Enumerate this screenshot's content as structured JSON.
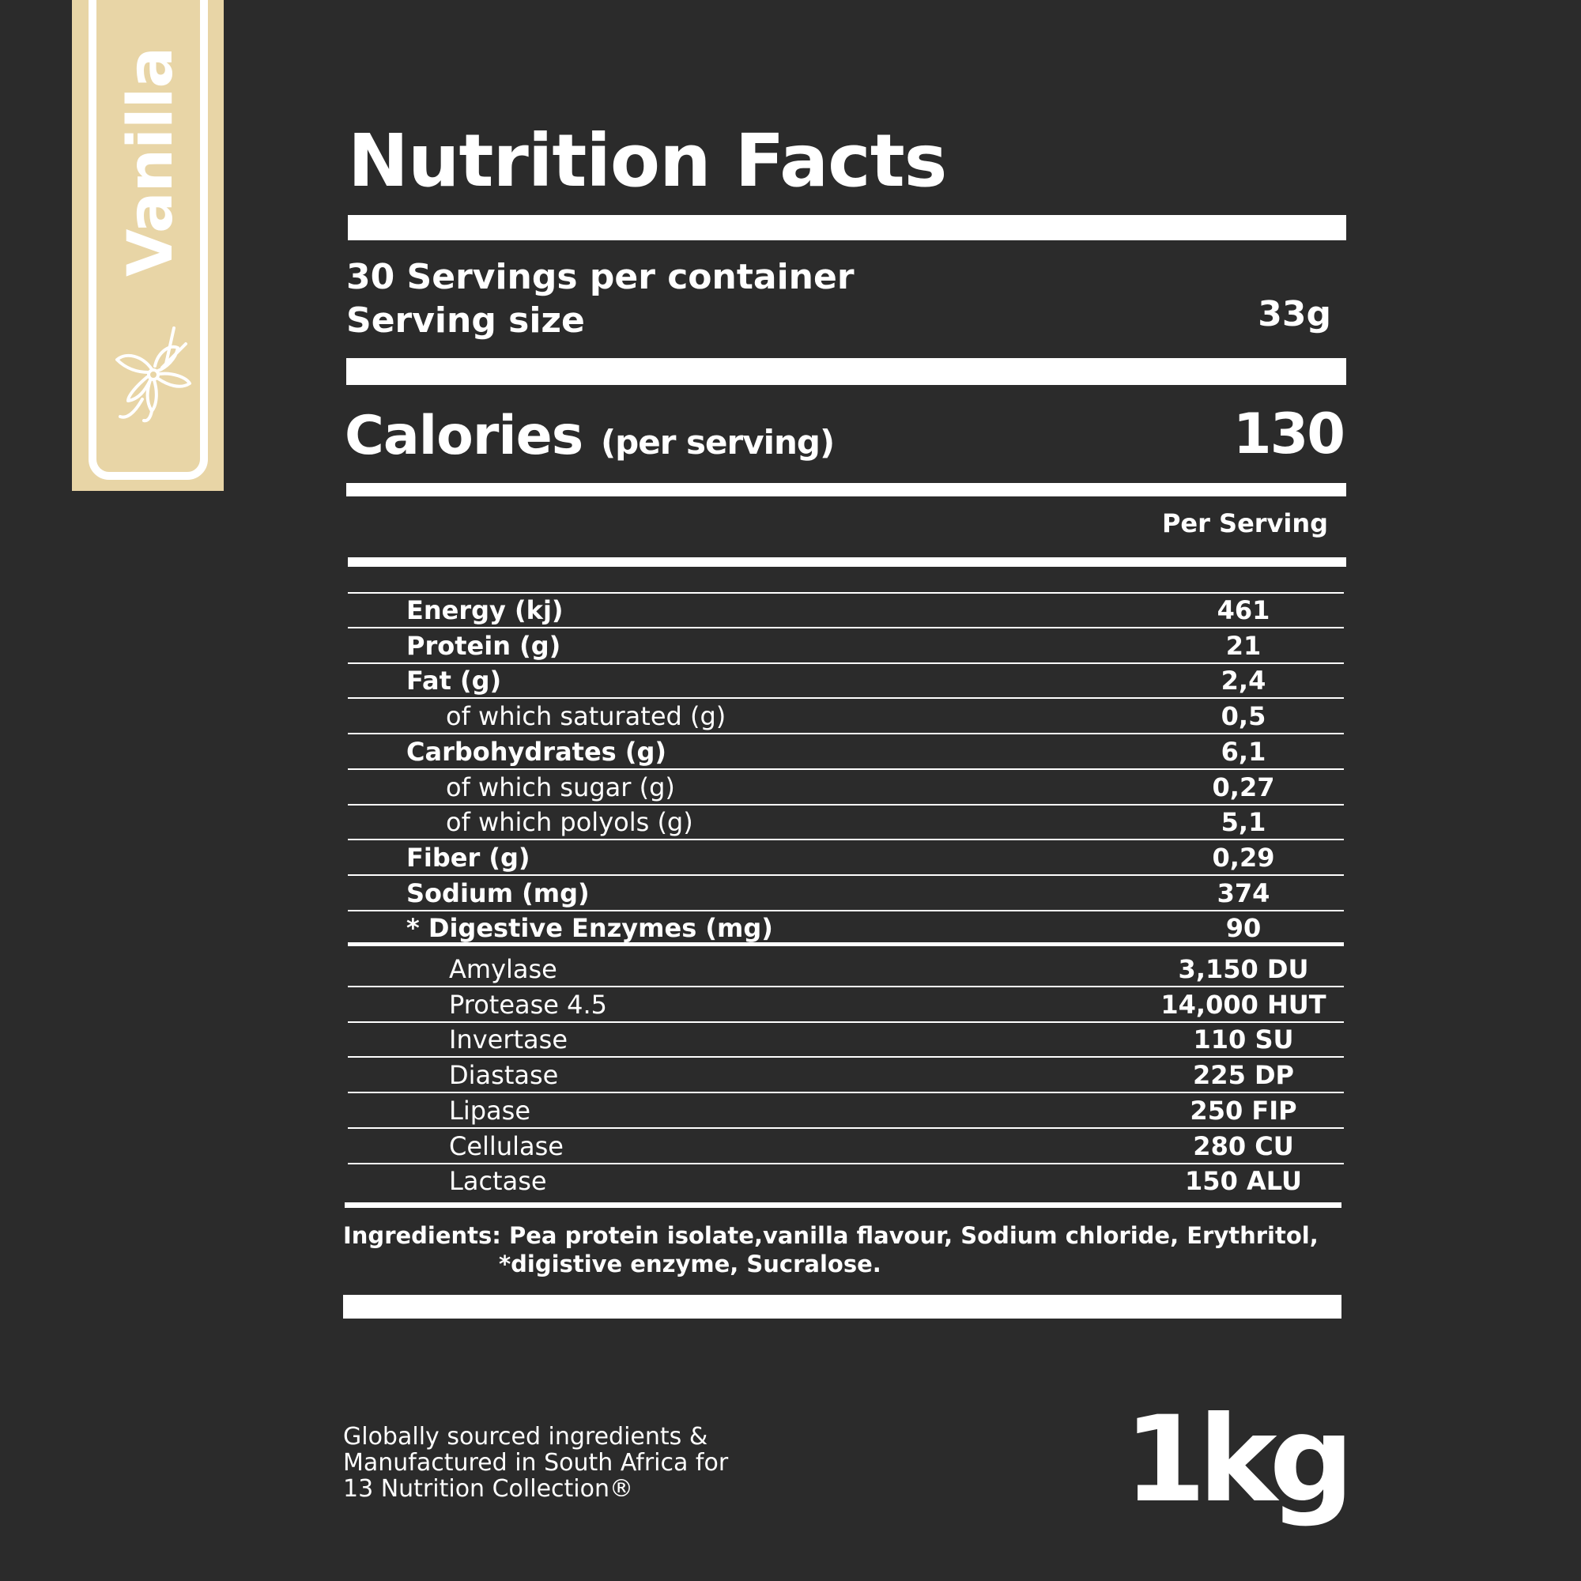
{
  "colors": {
    "background": "#2b2b2b",
    "flavor_strip": "#e8d5a6",
    "text": "#ffffff"
  },
  "flavor": {
    "name": "Vanilla",
    "icon": "vanilla-flower-icon"
  },
  "title": "Nutrition Facts",
  "servings": {
    "per_container": "30 Servings per container",
    "size_label": "Serving size",
    "size_value": "33g"
  },
  "calories": {
    "label": "Calories",
    "qualifier": "(per serving)",
    "value": "130"
  },
  "column_header": "Per Serving",
  "nutrients": [
    {
      "label": "Energy (kj)",
      "value": "461",
      "indent": false
    },
    {
      "label": "Protein (g)",
      "value": "21",
      "indent": false
    },
    {
      "label": "Fat (g)",
      "value": "2,4",
      "indent": false
    },
    {
      "label": "of which saturated (g)",
      "value": "0,5",
      "indent": true
    },
    {
      "label": "Carbohydrates (g)",
      "value": "6,1",
      "indent": false
    },
    {
      "label": "of which sugar (g)",
      "value": "0,27",
      "indent": true
    },
    {
      "label": "of which polyols (g)",
      "value": "5,1",
      "indent": true
    },
    {
      "label": "Fiber (g)",
      "value": "0,29",
      "indent": false
    },
    {
      "label": "Sodium (mg)",
      "value": "374",
      "indent": false
    },
    {
      "label": "* Digestive Enzymes (mg)",
      "value": "90",
      "indent": false
    }
  ],
  "enzymes": [
    {
      "label": "Amylase",
      "value": "3,150 DU"
    },
    {
      "label": "Protease 4.5",
      "value": "14,000 HUT"
    },
    {
      "label": "Invertase",
      "value": "110 SU"
    },
    {
      "label": "Diastase",
      "value": "225 DP"
    },
    {
      "label": "Lipase",
      "value": "250 FIP"
    },
    {
      "label": "Cellulase",
      "value": "280 CU"
    },
    {
      "label": "Lactase",
      "value": "150 ALU"
    }
  ],
  "ingredients": {
    "line1": "Ingredients: Pea protein isolate,vanilla flavour, Sodium chloride, Erythritol,",
    "line2": "*digistive enzyme, Sucralose."
  },
  "footer": {
    "line1": "Globally sourced ingredients &",
    "line2": "Manufactured in South Africa for",
    "line3": "13 Nutrition Collection®"
  },
  "weight": "1kg"
}
